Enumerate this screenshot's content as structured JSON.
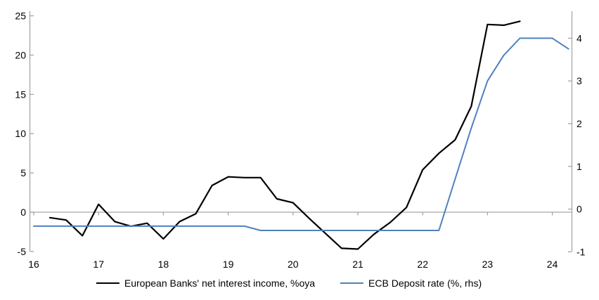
{
  "chart_data": {
    "type": "line",
    "title": "",
    "grid": "zero-line-only",
    "legend_position": "bottom-center",
    "axis_color": "#a6a6a6",
    "x_ticks": [
      "16",
      "17",
      "18",
      "19",
      "20",
      "21",
      "22",
      "23",
      "24"
    ],
    "x_range": [
      16,
      24.3
    ],
    "left_axis": {
      "ticks": [
        25,
        20,
        15,
        10,
        5,
        0,
        -5
      ],
      "range": [
        -5,
        25
      ]
    },
    "right_axis": {
      "ticks": [
        4,
        3,
        2,
        1,
        0,
        -1
      ],
      "range": [
        -1,
        4.7
      ]
    },
    "series": [
      {
        "name": "European Banks' net interest income, %oya",
        "axis": "left",
        "color": "#000000",
        "width": 2.2,
        "points": [
          [
            16.25,
            -0.7
          ],
          [
            16.5,
            -1.0
          ],
          [
            16.75,
            -3.0
          ],
          [
            17.0,
            1.0
          ],
          [
            17.25,
            -1.2
          ],
          [
            17.5,
            -1.8
          ],
          [
            17.75,
            -1.4
          ],
          [
            18.0,
            -3.4
          ],
          [
            18.25,
            -1.2
          ],
          [
            18.5,
            -0.2
          ],
          [
            18.75,
            3.4
          ],
          [
            19.0,
            4.5
          ],
          [
            19.25,
            4.4
          ],
          [
            19.5,
            4.4
          ],
          [
            19.75,
            1.7
          ],
          [
            20.0,
            1.2
          ],
          [
            20.25,
            -0.8
          ],
          [
            20.5,
            -2.7
          ],
          [
            20.75,
            -4.6
          ],
          [
            21.0,
            -4.7
          ],
          [
            21.25,
            -2.8
          ],
          [
            21.5,
            -1.3
          ],
          [
            21.75,
            0.6
          ],
          [
            22.0,
            5.4
          ],
          [
            22.25,
            7.5
          ],
          [
            22.5,
            9.2
          ],
          [
            22.75,
            13.5
          ],
          [
            23.0,
            23.9
          ],
          [
            23.25,
            23.8
          ],
          [
            23.5,
            24.3
          ]
        ]
      },
      {
        "name": "ECB Deposit rate (%, rhs)",
        "axis": "right",
        "color": "#4f81bd",
        "width": 2,
        "points": [
          [
            16.0,
            -0.4
          ],
          [
            16.25,
            -0.4
          ],
          [
            16.5,
            -0.4
          ],
          [
            16.75,
            -0.4
          ],
          [
            17.0,
            -0.4
          ],
          [
            17.25,
            -0.4
          ],
          [
            17.5,
            -0.4
          ],
          [
            17.75,
            -0.4
          ],
          [
            18.0,
            -0.4
          ],
          [
            18.25,
            -0.4
          ],
          [
            18.5,
            -0.4
          ],
          [
            18.75,
            -0.4
          ],
          [
            19.0,
            -0.4
          ],
          [
            19.25,
            -0.4
          ],
          [
            19.5,
            -0.5
          ],
          [
            19.75,
            -0.5
          ],
          [
            20.0,
            -0.5
          ],
          [
            20.25,
            -0.5
          ],
          [
            20.5,
            -0.5
          ],
          [
            20.75,
            -0.5
          ],
          [
            21.0,
            -0.5
          ],
          [
            21.25,
            -0.5
          ],
          [
            21.5,
            -0.5
          ],
          [
            21.75,
            -0.5
          ],
          [
            22.0,
            -0.5
          ],
          [
            22.25,
            -0.5
          ],
          [
            22.5,
            0.7
          ],
          [
            22.75,
            1.9
          ],
          [
            23.0,
            3.0
          ],
          [
            23.25,
            3.6
          ],
          [
            23.5,
            4.0
          ],
          [
            23.75,
            4.0
          ],
          [
            24.0,
            4.0
          ],
          [
            24.25,
            3.75
          ]
        ]
      }
    ]
  }
}
